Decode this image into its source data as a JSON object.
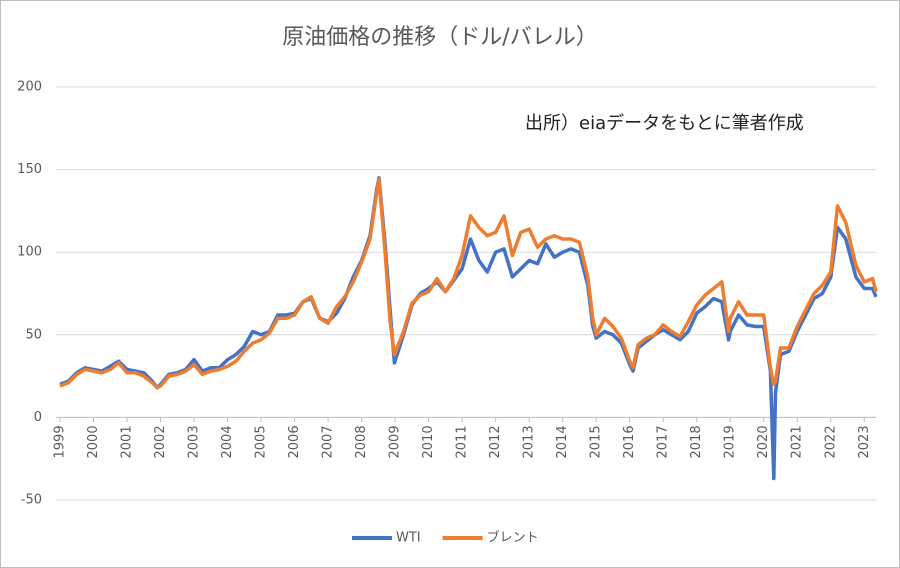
{
  "chart_data": {
    "type": "line",
    "title": "原油価格の推移（ドル/バレル）",
    "annotation": "出所）eiaデータをもとに筆者作成",
    "x": [
      1999,
      1999.25,
      1999.5,
      1999.75,
      2000,
      2000.25,
      2000.5,
      2000.75,
      2001,
      2001.25,
      2001.5,
      2001.75,
      2001.9,
      2002,
      2002.25,
      2002.5,
      2002.75,
      2003,
      2003.25,
      2003.5,
      2003.75,
      2004,
      2004.25,
      2004.5,
      2004.75,
      2005,
      2005.25,
      2005.5,
      2005.75,
      2006,
      2006.25,
      2006.5,
      2006.75,
      2007,
      2007.25,
      2007.5,
      2007.75,
      2008,
      2008.25,
      2008.45,
      2008.52,
      2008.7,
      2008.85,
      2008.98,
      2009.25,
      2009.5,
      2009.75,
      2010,
      2010.25,
      2010.5,
      2010.75,
      2011,
      2011.25,
      2011.5,
      2011.75,
      2012,
      2012.25,
      2012.5,
      2012.75,
      2013,
      2013.25,
      2013.5,
      2013.75,
      2014,
      2014.25,
      2014.5,
      2014.75,
      2014.9,
      2015,
      2015.25,
      2015.5,
      2015.75,
      2016,
      2016.1,
      2016.25,
      2016.5,
      2016.75,
      2017,
      2017.25,
      2017.5,
      2017.75,
      2018,
      2018.25,
      2018.5,
      2018.75,
      2018.95,
      2019,
      2019.25,
      2019.5,
      2019.75,
      2020,
      2020.2,
      2020.3,
      2020.35,
      2020.5,
      2020.75,
      2021,
      2021.25,
      2021.5,
      2021.75,
      2022,
      2022.2,
      2022.45,
      2022.75,
      2023,
      2023.25,
      2023.35
    ],
    "series": [
      {
        "name": "WTI",
        "color": "#4472c4",
        "values": [
          20,
          22,
          27,
          30,
          29,
          28,
          31,
          34,
          29,
          28,
          27,
          22,
          18,
          20,
          26,
          27,
          29,
          35,
          28,
          30,
          30,
          35,
          38,
          43,
          52,
          50,
          52,
          62,
          62,
          63,
          70,
          72,
          60,
          58,
          63,
          72,
          85,
          95,
          110,
          138,
          145,
          105,
          65,
          33,
          50,
          68,
          75,
          78,
          82,
          76,
          83,
          90,
          108,
          95,
          88,
          100,
          102,
          85,
          90,
          95,
          93,
          105,
          97,
          100,
          102,
          100,
          80,
          55,
          48,
          52,
          50,
          45,
          32,
          28,
          42,
          46,
          50,
          53,
          50,
          47,
          52,
          63,
          67,
          72,
          70,
          47,
          52,
          62,
          56,
          55,
          55,
          28,
          -37,
          15,
          38,
          40,
          52,
          62,
          72,
          75,
          85,
          115,
          108,
          85,
          78,
          78,
          73
        ]
      },
      {
        "name": "ブレント",
        "color": "#ed7d31",
        "values": [
          19,
          21,
          26,
          29,
          28,
          27,
          29,
          33,
          27,
          27,
          25,
          21,
          18,
          19,
          25,
          26,
          28,
          32,
          26,
          28,
          29,
          31,
          34,
          40,
          45,
          47,
          51,
          60,
          60,
          62,
          70,
          73,
          60,
          57,
          67,
          73,
          82,
          94,
          108,
          136,
          144,
          100,
          58,
          38,
          52,
          69,
          74,
          76,
          84,
          76,
          84,
          98,
          122,
          115,
          110,
          112,
          122,
          98,
          112,
          114,
          103,
          108,
          110,
          108,
          108,
          106,
          85,
          60,
          50,
          60,
          55,
          48,
          34,
          30,
          44,
          48,
          50,
          56,
          52,
          49,
          58,
          68,
          74,
          78,
          82,
          52,
          60,
          70,
          62,
          62,
          62,
          30,
          20,
          22,
          42,
          42,
          55,
          65,
          75,
          80,
          88,
          128,
          118,
          92,
          82,
          84,
          76
        ]
      }
    ],
    "xlim": [
      1999,
      2023.35
    ],
    "xticks": [
      1999,
      2000,
      2001,
      2002,
      2003,
      2004,
      2005,
      2006,
      2007,
      2008,
      2009,
      2010,
      2011,
      2012,
      2013,
      2014,
      2015,
      2016,
      2017,
      2018,
      2019,
      2020,
      2021,
      2022,
      2023
    ],
    "ylim": [
      -50,
      200
    ],
    "yticks": [
      -50,
      0,
      50,
      100,
      150,
      200
    ],
    "grid": true,
    "legend": "bottom"
  }
}
